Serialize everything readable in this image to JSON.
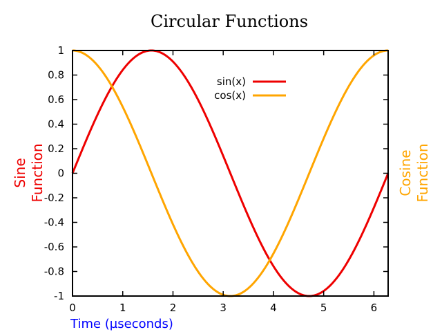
{
  "chart_data": {
    "type": "line",
    "title": "Circular Functions",
    "xlabel": "Time (µseconds)",
    "ylabel_left": "Sine Function",
    "ylabel_left_lines": [
      "Sine",
      "Function"
    ],
    "ylabel_right": "Cosine Function",
    "ylabel_right_lines": [
      "Cosine",
      "Function"
    ],
    "xlim": [
      0,
      6.283185307
    ],
    "ylim": [
      -1,
      1
    ],
    "x_ticks": [
      0,
      1,
      2,
      3,
      4,
      5,
      6
    ],
    "x_tick_labels": [
      "0",
      "1",
      "2",
      "3",
      "4",
      "5",
      "6"
    ],
    "y_ticks": [
      1,
      0.8,
      0.6,
      0.4,
      0.2,
      0,
      -0.2,
      -0.4,
      -0.6,
      -0.8,
      -1
    ],
    "y_tick_labels": [
      "1",
      "0.8",
      "0.6",
      "0.4",
      "0.2",
      "0",
      "-0.2",
      "-0.4",
      "-0.6",
      "-0.8",
      "-1"
    ],
    "grid": false,
    "legend_position": "top-right",
    "colors": {
      "sin": "#ee0000",
      "cos": "#ffa500",
      "xlabel": "#0000ff",
      "ylabel_left": "#ee0000",
      "ylabel_right": "#ffa500",
      "axes": "#000000"
    },
    "series": [
      {
        "name": "sin(x)",
        "color": "#ee0000",
        "x": [
          0,
          0.2,
          0.4,
          0.6,
          0.8,
          1.0,
          1.2,
          1.4,
          1.5708,
          1.8,
          2.0,
          2.2,
          2.4,
          2.6,
          2.8,
          3.0,
          3.1416,
          3.4,
          3.6,
          3.8,
          4.0,
          4.2,
          4.4,
          4.6,
          4.7124,
          5.0,
          5.2,
          5.4,
          5.6,
          5.8,
          6.0,
          6.2832
        ],
        "y": [
          0,
          0.199,
          0.389,
          0.565,
          0.717,
          0.841,
          0.932,
          0.985,
          1.0,
          0.974,
          0.909,
          0.808,
          0.675,
          0.516,
          0.335,
          0.141,
          0,
          -0.256,
          -0.443,
          -0.612,
          -0.757,
          -0.872,
          -0.952,
          -0.994,
          -1.0,
          -0.959,
          -0.883,
          -0.773,
          -0.631,
          -0.465,
          -0.279,
          0
        ]
      },
      {
        "name": "cos(x)",
        "color": "#ffa500",
        "x": [
          0,
          0.2,
          0.4,
          0.6,
          0.8,
          1.0,
          1.2,
          1.4,
          1.5708,
          1.8,
          2.0,
          2.2,
          2.4,
          2.6,
          2.8,
          3.0,
          3.1416,
          3.4,
          3.6,
          3.8,
          4.0,
          4.2,
          4.4,
          4.6,
          4.7124,
          5.0,
          5.2,
          5.4,
          5.6,
          5.8,
          6.0,
          6.2832
        ],
        "y": [
          1,
          0.98,
          0.921,
          0.825,
          0.697,
          0.54,
          0.362,
          0.17,
          0,
          -0.227,
          -0.416,
          -0.589,
          -0.737,
          -0.857,
          -0.942,
          -0.99,
          -1.0,
          -0.967,
          -0.897,
          -0.791,
          -0.654,
          -0.49,
          -0.307,
          -0.112,
          0,
          0.284,
          0.469,
          0.635,
          0.776,
          0.886,
          0.96,
          1.0
        ]
      }
    ]
  }
}
